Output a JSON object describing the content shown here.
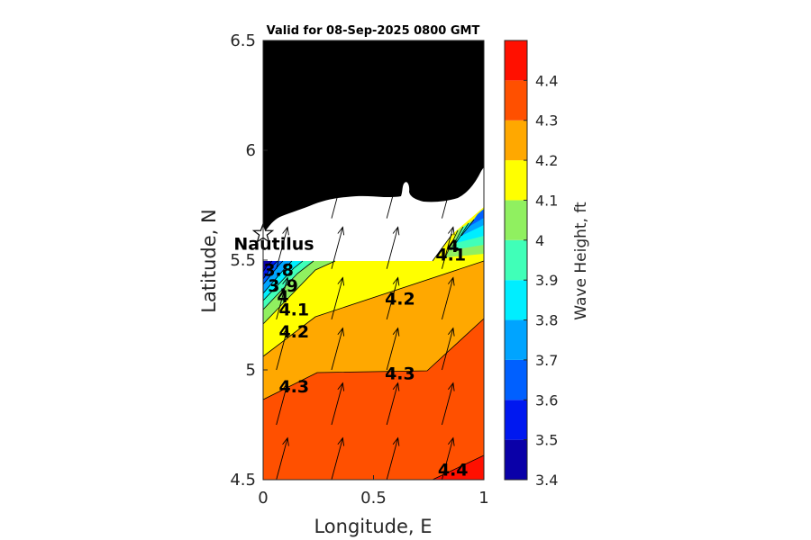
{
  "chart_data": {
    "type": "heatmap",
    "title": "Valid for 08-Sep-2025 0800 GMT",
    "xlabel": "Longitude, E",
    "ylabel": "Latitude, N",
    "xlim": [
      0,
      1
    ],
    "ylim": [
      4.5,
      6.5
    ],
    "xticks": [
      "0",
      "0.5",
      "1"
    ],
    "yticks": [
      "4.5",
      "5",
      "5.5",
      "6",
      "6.5"
    ],
    "colorbar": {
      "label": "Wave Height, ft",
      "levels": [
        3.4,
        3.5,
        3.6,
        3.7,
        3.8,
        3.9,
        4.0,
        4.1,
        4.2,
        4.3,
        4.4,
        4.5
      ],
      "tick_labels": [
        "3.4",
        "3.5",
        "3.6",
        "3.7",
        "3.8",
        "3.9",
        "4",
        "4.1",
        "4.2",
        "4.3",
        "4.4"
      ],
      "colors": [
        "#0a00a8",
        "#0018f0",
        "#0060ff",
        "#00a4ff",
        "#00eeff",
        "#40ffb8",
        "#90f060",
        "#ffff00",
        "#ffa800",
        "#ff5000",
        "#ff1000"
      ]
    },
    "contour_labels": [
      {
        "text": "3.8",
        "lon": 0.07,
        "lat": 5.45
      },
      {
        "text": "3.9",
        "lon": 0.09,
        "lat": 5.38
      },
      {
        "text": "4",
        "lon": 0.09,
        "lat": 5.33
      },
      {
        "text": "4.1",
        "lon": 0.14,
        "lat": 5.27
      },
      {
        "text": "4.2",
        "lon": 0.14,
        "lat": 5.17
      },
      {
        "text": "4.3",
        "lon": 0.14,
        "lat": 4.92
      },
      {
        "text": "4.2",
        "lon": 0.62,
        "lat": 5.32
      },
      {
        "text": "4.3",
        "lon": 0.62,
        "lat": 4.98
      },
      {
        "text": "4",
        "lon": 0.86,
        "lat": 5.56
      },
      {
        "text": "4.1",
        "lon": 0.85,
        "lat": 5.52
      },
      {
        "text": "4.4",
        "lon": 0.86,
        "lat": 4.54
      }
    ],
    "station": {
      "name": "Nautilus",
      "lon": 0.0,
      "lat": 5.62
    },
    "vectors": [
      {
        "lon": 0.06,
        "lat": 5.46
      },
      {
        "lon": 0.31,
        "lat": 5.46
      },
      {
        "lon": 0.56,
        "lat": 5.46
      },
      {
        "lon": 0.81,
        "lat": 5.46
      },
      {
        "lon": 0.06,
        "lat": 5.0
      },
      {
        "lon": 0.31,
        "lat": 5.0
      },
      {
        "lon": 0.56,
        "lat": 5.0
      },
      {
        "lon": 0.81,
        "lat": 5.0
      },
      {
        "lon": 0.06,
        "lat": 4.5
      },
      {
        "lon": 0.31,
        "lat": 4.5
      },
      {
        "lon": 0.56,
        "lat": 4.5
      },
      {
        "lon": 0.81,
        "lat": 4.5
      },
      {
        "lon": 0.06,
        "lat": 5.23
      },
      {
        "lon": 0.31,
        "lat": 5.23
      },
      {
        "lon": 0.56,
        "lat": 5.23
      },
      {
        "lon": 0.81,
        "lat": 5.23
      },
      {
        "lon": 0.06,
        "lat": 4.75
      },
      {
        "lon": 0.31,
        "lat": 4.75
      },
      {
        "lon": 0.56,
        "lat": 4.75
      },
      {
        "lon": 0.81,
        "lat": 4.75
      },
      {
        "lon": 0.31,
        "lat": 5.69
      },
      {
        "lon": 0.56,
        "lat": 5.69
      },
      {
        "lon": 0.81,
        "lat": 5.69
      }
    ],
    "vector_direction_deg": 15,
    "grid": false
  }
}
